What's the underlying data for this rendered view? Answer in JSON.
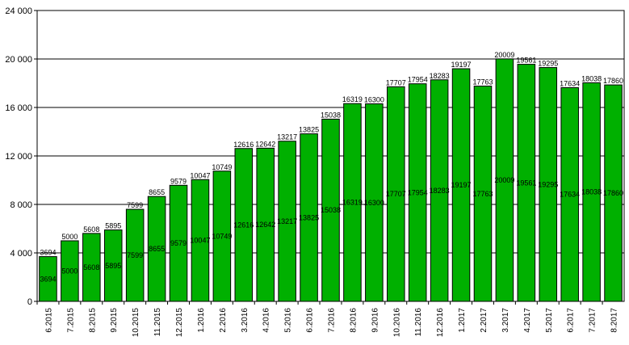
{
  "chart_data": {
    "type": "bar",
    "title": "",
    "xlabel": "",
    "ylabel": "",
    "ylim": [
      0,
      24000
    ],
    "yticks": [
      0,
      4000,
      8000,
      12000,
      16000,
      20000,
      24000
    ],
    "ytick_labels": [
      "0",
      "4 000",
      "8 000",
      "12 000",
      "16 000",
      "20 000",
      "24 000"
    ],
    "grid": true,
    "bar_color": "#00b000",
    "categories": [
      "6.2015",
      "7.2015",
      "8.2015",
      "9.2015",
      "10.2015",
      "11.2015",
      "12.2015",
      "1.2016",
      "2.2016",
      "3.2016",
      "4.2016",
      "5.2016",
      "6.2016",
      "7.2016",
      "8.2016",
      "9.2016",
      "10.2016",
      "11.2016",
      "12.2016",
      "1.2017",
      "2.2017",
      "3.2017",
      "4.2017",
      "5.2017",
      "6.2017",
      "7.2017",
      "8.2017"
    ],
    "values": [
      3694,
      5000,
      5608,
      5895,
      7599,
      8655,
      9579,
      10047,
      10749,
      12616,
      12642,
      13217,
      13825,
      15038,
      16319,
      16300,
      17707,
      17954,
      18283,
      19197,
      17763,
      20009,
      19561,
      19295,
      17634,
      18038,
      17860
    ]
  }
}
